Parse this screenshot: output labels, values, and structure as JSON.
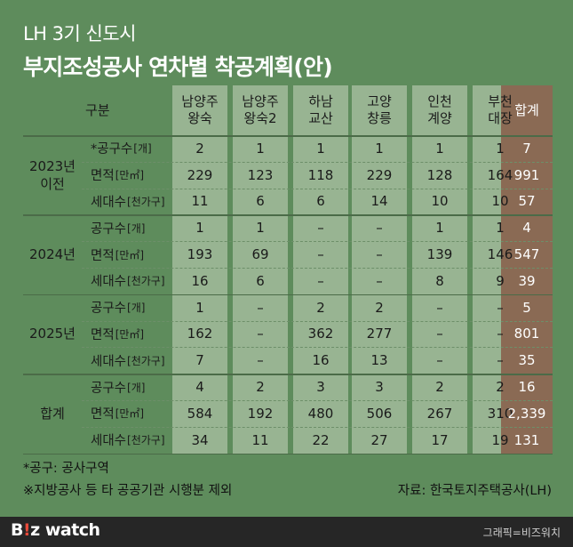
{
  "title_line1": "LH 3기 신도시",
  "title_line2": "부지조성공사 연차별 착공계획(안)",
  "chart_data": {
    "type": "table",
    "corner_label": "구분",
    "columns": [
      [
        "남양주",
        "왕숙"
      ],
      [
        "남양주",
        "왕숙2"
      ],
      [
        "하남",
        "교산"
      ],
      [
        "고양",
        "창릉"
      ],
      [
        "인천",
        "계양"
      ],
      [
        "부천",
        "대장"
      ],
      [
        "합계"
      ]
    ],
    "groups": [
      {
        "year": [
          "2023년",
          "이전"
        ],
        "rows": [
          {
            "label": "*공구수",
            "unit": "[개]",
            "values": [
              "2",
              "1",
              "1",
              "1",
              "1",
              "1",
              "7"
            ]
          },
          {
            "label": "면적",
            "unit": "[만㎡]",
            "values": [
              "229",
              "123",
              "118",
              "229",
              "128",
              "164",
              "991"
            ]
          },
          {
            "label": "세대수",
            "unit": "[천가구]",
            "values": [
              "11",
              "6",
              "6",
              "14",
              "10",
              "10",
              "57"
            ]
          }
        ]
      },
      {
        "year": [
          "2024년"
        ],
        "rows": [
          {
            "label": "공구수",
            "unit": "[개]",
            "values": [
              "1",
              "1",
              "–",
              "–",
              "1",
              "1",
              "4"
            ]
          },
          {
            "label": "면적",
            "unit": "[만㎡]",
            "values": [
              "193",
              "69",
              "–",
              "–",
              "139",
              "146",
              "547"
            ]
          },
          {
            "label": "세대수",
            "unit": "[천가구]",
            "values": [
              "16",
              "6",
              "–",
              "–",
              "8",
              "9",
              "39"
            ]
          }
        ]
      },
      {
        "year": [
          "2025년"
        ],
        "rows": [
          {
            "label": "공구수",
            "unit": "[개]",
            "values": [
              "1",
              "–",
              "2",
              "2",
              "–",
              "–",
              "5"
            ]
          },
          {
            "label": "면적",
            "unit": "[만㎡]",
            "values": [
              "162",
              "–",
              "362",
              "277",
              "–",
              "–",
              "801"
            ]
          },
          {
            "label": "세대수",
            "unit": "[천가구]",
            "values": [
              "7",
              "–",
              "16",
              "13",
              "–",
              "–",
              "35"
            ]
          }
        ]
      },
      {
        "year": [
          "합계"
        ],
        "rows": [
          {
            "label": "공구수",
            "unit": "[개]",
            "values": [
              "4",
              "2",
              "3",
              "3",
              "2",
              "2",
              "16"
            ]
          },
          {
            "label": "면적",
            "unit": "[만㎡]",
            "values": [
              "584",
              "192",
              "480",
              "506",
              "267",
              "310",
              "2,339"
            ]
          },
          {
            "label": "세대수",
            "unit": "[천가구]",
            "values": [
              "34",
              "11",
              "22",
              "27",
              "17",
              "19",
              "131"
            ]
          }
        ]
      }
    ]
  },
  "notes": {
    "note1": "*공구: 공사구역",
    "note2": "※지방공사 등 타 공공기관 시행분 제외",
    "source": "자료: 한국토지주택공사(LH)"
  },
  "footer": {
    "logo_b": "B",
    "logo_dot": "!",
    "logo_rest": "z watch",
    "credit": "그래픽=비즈워치"
  },
  "colors": {
    "background": "#5e8c5c",
    "column_bg": "#98b492",
    "total_column_bg": "#8a6a54",
    "footer_bg": "#262626"
  }
}
